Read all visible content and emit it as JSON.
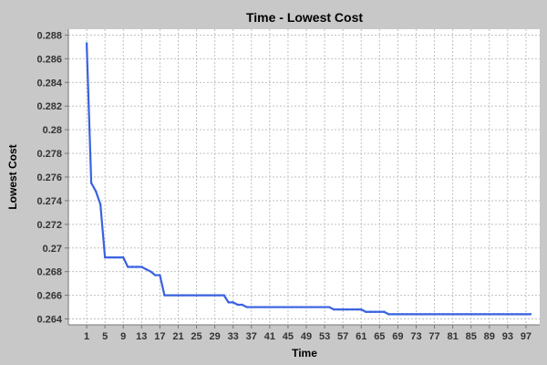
{
  "chart_data": {
    "type": "line",
    "title": "Time - Lowest Cost",
    "xlabel": "Time",
    "ylabel": "Lowest Cost",
    "xlim": [
      -3,
      100
    ],
    "ylim": [
      0.2635,
      0.2885
    ],
    "xticks": [
      1,
      5,
      9,
      13,
      17,
      21,
      25,
      29,
      33,
      37,
      41,
      45,
      49,
      53,
      57,
      61,
      65,
      69,
      73,
      77,
      81,
      85,
      89,
      93,
      97
    ],
    "yticks": [
      0.264,
      0.266,
      0.268,
      0.27,
      0.272,
      0.274,
      0.276,
      0.278,
      0.28,
      0.282,
      0.284,
      0.286,
      0.288
    ],
    "ytick_labels": [
      "0.264",
      "0.266",
      "0.268",
      "0.27",
      "0.272",
      "0.274",
      "0.276",
      "0.278",
      "0.28",
      "0.282",
      "0.284",
      "0.286",
      "0.288"
    ],
    "grid": true,
    "series": [
      {
        "color": "#3a62e0",
        "x": [
          1,
          2,
          3,
          4,
          5,
          6,
          7,
          8,
          9,
          10,
          11,
          12,
          13,
          14,
          15,
          16,
          17,
          18,
          19,
          20,
          21,
          22,
          23,
          24,
          25,
          26,
          27,
          28,
          29,
          30,
          31,
          32,
          33,
          34,
          35,
          36,
          37,
          38,
          39,
          40,
          41,
          42,
          43,
          44,
          45,
          46,
          47,
          48,
          49,
          50,
          51,
          52,
          53,
          54,
          55,
          56,
          57,
          58,
          59,
          60,
          61,
          62,
          63,
          64,
          65,
          66,
          67,
          68,
          69,
          70,
          71,
          72,
          73,
          74,
          75,
          76,
          77,
          78,
          79,
          80,
          81,
          82,
          83,
          84,
          85,
          86,
          87,
          88,
          89,
          90,
          91,
          92,
          93,
          94,
          95,
          96,
          97,
          98
        ],
        "values": [
          0.2873,
          0.2755,
          0.2748,
          0.2737,
          0.2692,
          0.2692,
          0.2692,
          0.2692,
          0.2692,
          0.2684,
          0.2684,
          0.2684,
          0.2684,
          0.2682,
          0.268,
          0.2677,
          0.2677,
          0.266,
          0.266,
          0.266,
          0.266,
          0.266,
          0.266,
          0.266,
          0.266,
          0.266,
          0.266,
          0.266,
          0.266,
          0.266,
          0.266,
          0.2654,
          0.2654,
          0.2652,
          0.2652,
          0.265,
          0.265,
          0.265,
          0.265,
          0.265,
          0.265,
          0.265,
          0.265,
          0.265,
          0.265,
          0.265,
          0.265,
          0.265,
          0.265,
          0.265,
          0.265,
          0.265,
          0.265,
          0.265,
          0.2648,
          0.2648,
          0.2648,
          0.2648,
          0.2648,
          0.2648,
          0.2648,
          0.2646,
          0.2646,
          0.2646,
          0.2646,
          0.2646,
          0.2644,
          0.2644,
          0.2644,
          0.2644,
          0.2644,
          0.2644,
          0.2644,
          0.2644,
          0.2644,
          0.2644,
          0.2644,
          0.2644,
          0.2644,
          0.2644,
          0.2644,
          0.2644,
          0.2644,
          0.2644,
          0.2644,
          0.2644,
          0.2644,
          0.2644,
          0.2644,
          0.2644,
          0.2644,
          0.2644,
          0.2644,
          0.2644,
          0.2644,
          0.2644,
          0.2644,
          0.2644
        ]
      }
    ]
  }
}
